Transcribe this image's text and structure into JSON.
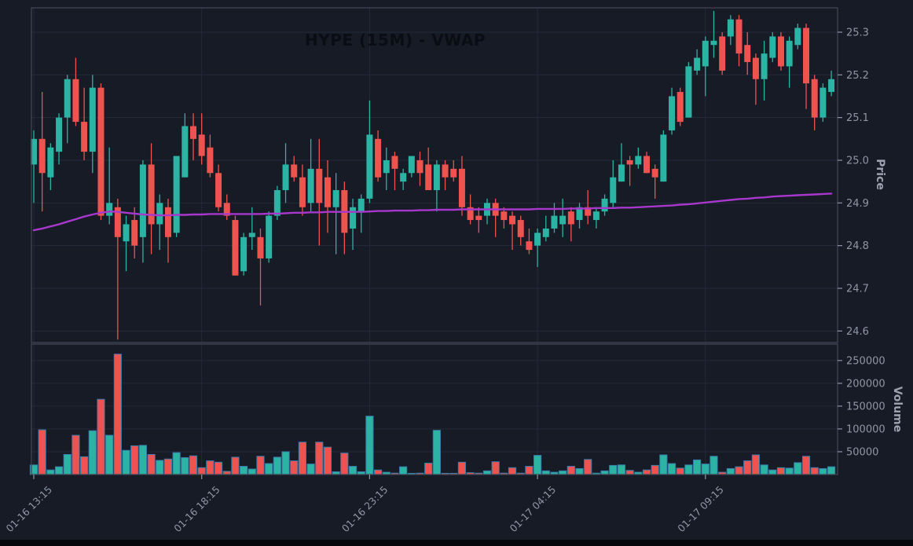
{
  "title": "HYPE (15M) - VWAP",
  "colors": {
    "background": "#161B26",
    "grid": "#232A38",
    "spine": "#3E4654",
    "up": "#2BB3A3",
    "down": "#EF5350",
    "vwap": "#A838CC",
    "title_text": "#0A0D13",
    "tick_text": "#8F96A4",
    "axis_label_text": "#9BA1AE",
    "volume_edge": "#3A7CA8",
    "bottom_strip": "#05070C"
  },
  "chart_data": {
    "type": "candlestick+volume",
    "title": "HYPE (15M) - VWAP",
    "symbol": "HYPE",
    "interval": "15M",
    "overlay_indicator": "VWAP",
    "grid": true,
    "legend": "none",
    "price_axis": {
      "label": "Price",
      "side": "right",
      "ticks": [
        25.3,
        25.2,
        25.1,
        25.0,
        24.9,
        24.8,
        24.7,
        24.6
      ],
      "range": [
        24.573,
        25.357
      ]
    },
    "volume_axis": {
      "label": "Volume",
      "side": "right",
      "ticks": [
        250000,
        200000,
        150000,
        100000,
        50000
      ],
      "range": [
        0,
        286000
      ]
    },
    "x_ticks": [
      {
        "index": 0,
        "label": "01-16 13:15"
      },
      {
        "index": 20,
        "label": "01-16 18:15"
      },
      {
        "index": 40,
        "label": "01-16 23:15"
      },
      {
        "index": 60,
        "label": "01-17 04:15"
      },
      {
        "index": 80,
        "label": "01-17 09:15"
      }
    ],
    "candle_count": 96,
    "open": [
      24.99,
      25.05,
      24.96,
      25.02,
      25.1,
      25.19,
      25.09,
      25.02,
      25.17,
      24.87,
      24.89,
      24.81,
      24.86,
      24.82,
      24.99,
      24.85,
      24.89,
      24.83,
      24.96,
      25.08,
      25.06,
      25.03,
      24.97,
      24.9,
      24.86,
      24.74,
      24.82,
      24.82,
      24.77,
      24.87,
      24.93,
      24.99,
      24.96,
      24.9,
      24.98,
      24.96,
      24.89,
      24.93,
      24.84,
      24.88,
      24.91,
      25.05,
      24.97,
      25.01,
      24.95,
      24.97,
      25.0,
      24.99,
      24.93,
      24.99,
      24.98,
      24.98,
      24.89,
      24.87,
      24.87,
      24.9,
      24.88,
      24.87,
      24.86,
      24.81,
      24.8,
      24.82,
      24.84,
      24.85,
      24.88,
      24.86,
      24.89,
      24.86,
      24.88,
      24.9,
      24.95,
      25.0,
      24.99,
      25.01,
      24.98,
      24.95,
      25.07,
      25.16,
      25.1,
      25.21,
      25.22,
      25.27,
      25.29,
      25.29,
      25.33,
      25.27,
      25.24,
      25.19,
      25.24,
      25.29,
      25.22,
      25.27,
      25.31,
      25.19,
      25.1,
      25.16
    ],
    "high": [
      25.07,
      25.16,
      25.04,
      25.11,
      25.2,
      25.24,
      25.17,
      25.2,
      25.18,
      25.03,
      24.91,
      24.87,
      24.89,
      25.0,
      25.04,
      24.92,
      24.91,
      25.01,
      25.11,
      25.11,
      25.11,
      25.06,
      24.99,
      24.92,
      24.87,
      24.83,
      24.89,
      24.84,
      24.88,
      24.94,
      25.04,
      25.01,
      24.99,
      25.05,
      25.05,
      25.0,
      24.97,
      24.95,
      24.91,
      24.92,
      25.14,
      25.07,
      25.03,
      25.02,
      24.98,
      25.01,
      25.02,
      25.03,
      25.0,
      25.0,
      25.0,
      25.01,
      24.92,
      24.89,
      24.91,
      24.91,
      24.89,
      24.88,
      24.87,
      24.84,
      24.84,
      24.87,
      24.9,
      24.91,
      24.89,
      24.9,
      24.93,
      24.89,
      24.92,
      25.0,
      25.04,
      25.01,
      25.03,
      25.02,
      24.99,
      25.07,
      25.17,
      25.17,
      25.23,
      25.26,
      25.29,
      25.35,
      25.3,
      25.34,
      25.34,
      25.3,
      25.25,
      25.28,
      25.3,
      25.3,
      25.29,
      25.32,
      25.32,
      25.2,
      25.18,
      25.21
    ],
    "low": [
      24.9,
      24.88,
      24.93,
      24.99,
      25.04,
      25.08,
      25.0,
      24.97,
      24.86,
      24.85,
      24.58,
      24.74,
      24.77,
      24.76,
      24.78,
      24.79,
      24.76,
      24.82,
      24.96,
      25.0,
      24.99,
      24.96,
      24.88,
      24.86,
      24.73,
      24.73,
      24.79,
      24.66,
      24.76,
      24.86,
      24.9,
      24.95,
      24.87,
      24.88,
      24.8,
      24.83,
      24.78,
      24.78,
      24.79,
      24.83,
      24.9,
      24.95,
      24.93,
      24.93,
      24.93,
      24.96,
      24.94,
      24.93,
      24.88,
      24.93,
      24.95,
      24.87,
      24.85,
      24.83,
      24.85,
      24.82,
      24.84,
      24.79,
      24.8,
      24.78,
      24.75,
      24.81,
      24.83,
      24.82,
      24.81,
      24.84,
      24.85,
      24.84,
      24.87,
      24.89,
      24.95,
      24.94,
      24.98,
      24.97,
      24.91,
      24.95,
      25.06,
      25.08,
      25.1,
      25.2,
      25.15,
      25.24,
      25.2,
      25.27,
      25.22,
      25.2,
      25.13,
      25.14,
      25.23,
      25.21,
      25.17,
      25.26,
      25.12,
      25.07,
      25.09,
      25.15
    ],
    "close": [
      25.05,
      24.97,
      25.03,
      25.1,
      25.19,
      25.09,
      25.02,
      25.17,
      24.87,
      24.9,
      24.82,
      24.85,
      24.8,
      24.99,
      24.85,
      24.9,
      24.82,
      25.01,
      25.08,
      25.05,
      25.01,
      24.97,
      24.89,
      24.87,
      24.73,
      24.82,
      24.83,
      24.77,
      24.87,
      24.93,
      24.99,
      24.96,
      24.89,
      24.98,
      24.9,
      24.89,
      24.93,
      24.83,
      24.89,
      24.91,
      25.06,
      24.96,
      25.0,
      24.98,
      24.97,
      25.01,
      24.97,
      24.93,
      24.99,
      24.96,
      24.96,
      24.89,
      24.86,
      24.86,
      24.9,
      24.87,
      24.86,
      24.85,
      24.82,
      24.79,
      24.83,
      24.84,
      24.87,
      24.87,
      24.85,
      24.89,
      24.87,
      24.88,
      24.91,
      24.96,
      24.99,
      24.99,
      25.01,
      24.97,
      24.96,
      25.06,
      25.15,
      25.09,
      25.22,
      25.24,
      25.28,
      25.28,
      25.21,
      25.33,
      25.25,
      25.23,
      25.19,
      25.25,
      25.29,
      25.22,
      25.28,
      25.31,
      25.18,
      25.1,
      25.17,
      25.19
    ],
    "volume": [
      21000,
      98000,
      10000,
      17000,
      44000,
      86000,
      39000,
      96000,
      165000,
      86000,
      264000,
      53000,
      63000,
      64000,
      44000,
      31000,
      34000,
      48000,
      37000,
      41000,
      15000,
      30000,
      27000,
      7000,
      38000,
      18000,
      12000,
      40000,
      24000,
      38000,
      50000,
      30000,
      71000,
      23000,
      71000,
      60000,
      6000,
      47000,
      18000,
      6000,
      128000,
      10000,
      5000,
      3000,
      17000,
      2000,
      3000,
      25000,
      97000,
      2000,
      2000,
      27000,
      4000,
      3000,
      8000,
      28000,
      3000,
      15000,
      3000,
      18000,
      42000,
      8000,
      5000,
      8000,
      18000,
      13000,
      33000,
      3000,
      8000,
      20000,
      21000,
      9000,
      5000,
      10000,
      20000,
      43000,
      24000,
      14000,
      21000,
      32000,
      23000,
      40000,
      5000,
      13000,
      17000,
      30000,
      43000,
      21000,
      10000,
      15000,
      14000,
      26000,
      40000,
      15000,
      13000,
      17000
    ],
    "vwap": [
      24.836,
      24.84,
      24.845,
      24.85,
      24.856,
      24.862,
      24.868,
      24.873,
      24.877,
      24.88,
      24.879,
      24.877,
      24.875,
      24.873,
      24.872,
      24.871,
      24.871,
      24.872,
      24.872,
      24.873,
      24.873,
      24.874,
      24.874,
      24.874,
      24.874,
      24.874,
      24.874,
      24.874,
      24.875,
      24.875,
      24.876,
      24.877,
      24.877,
      24.878,
      24.878,
      24.879,
      24.879,
      24.879,
      24.879,
      24.879,
      24.88,
      24.881,
      24.881,
      24.882,
      24.882,
      24.882,
      24.883,
      24.883,
      24.884,
      24.884,
      24.884,
      24.885,
      24.885,
      24.885,
      24.885,
      24.885,
      24.885,
      24.885,
      24.885,
      24.885,
      24.886,
      24.886,
      24.886,
      24.886,
      24.887,
      24.887,
      24.887,
      24.888,
      24.888,
      24.888,
      24.889,
      24.889,
      24.89,
      24.891,
      24.892,
      24.893,
      24.894,
      24.896,
      24.897,
      24.899,
      24.901,
      24.903,
      24.905,
      24.907,
      24.909,
      24.91,
      24.912,
      24.913,
      24.915,
      24.916,
      24.917,
      24.918,
      24.919,
      24.92,
      24.921,
      24.922
    ]
  }
}
